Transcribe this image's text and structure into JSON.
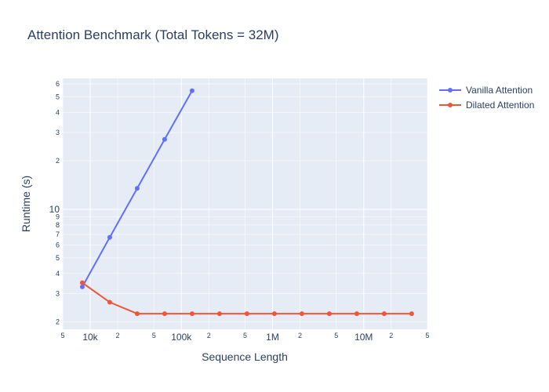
{
  "chart_data": {
    "type": "line",
    "title": "Attention Benchmark (Total Tokens = 32M)",
    "xlabel": "Sequence Length",
    "ylabel": "Runtime (s)",
    "x_scale": "log",
    "y_scale": "log",
    "xlim": [
      5000,
      50000000
    ],
    "ylim": [
      1.8,
      65
    ],
    "x_major_ticks": [
      {
        "value": 10000,
        "label": "10k"
      },
      {
        "value": 100000,
        "label": "100k"
      },
      {
        "value": 1000000,
        "label": "1M"
      },
      {
        "value": 10000000,
        "label": "10M"
      }
    ],
    "x_minor_ticks": [
      {
        "value": 5000,
        "label": "5"
      },
      {
        "value": 20000,
        "label": "2"
      },
      {
        "value": 50000,
        "label": "5"
      },
      {
        "value": 200000,
        "label": "2"
      },
      {
        "value": 500000,
        "label": "5"
      },
      {
        "value": 2000000,
        "label": "2"
      },
      {
        "value": 5000000,
        "label": "5"
      },
      {
        "value": 20000000,
        "label": "2"
      },
      {
        "value": 50000000,
        "label": "5"
      }
    ],
    "y_major_ticks": [
      {
        "value": 10,
        "label": "10"
      }
    ],
    "y_minor_ticks": [
      {
        "value": 2,
        "label": "2"
      },
      {
        "value": 3,
        "label": "3"
      },
      {
        "value": 4,
        "label": "4"
      },
      {
        "value": 5,
        "label": "5"
      },
      {
        "value": 6,
        "label": "6"
      },
      {
        "value": 7,
        "label": "7"
      },
      {
        "value": 8,
        "label": "8"
      },
      {
        "value": 9,
        "label": "9"
      },
      {
        "value": 20,
        "label": "2"
      },
      {
        "value": 30,
        "label": "3"
      },
      {
        "value": 40,
        "label": "4"
      },
      {
        "value": 50,
        "label": "5"
      },
      {
        "value": 60,
        "label": "6"
      }
    ],
    "series": [
      {
        "name": "Vanilla Attention",
        "color": "#636efa",
        "x": [
          8192,
          16384,
          32768,
          65536,
          131072
        ],
        "y": [
          3.3,
          6.7,
          13.5,
          27.2,
          54.5
        ]
      },
      {
        "name": "Dilated Attention",
        "color": "#ef553b",
        "x": [
          8192,
          16384,
          32768,
          65536,
          131072,
          262144,
          524288,
          1048576,
          2097152,
          4194304,
          8388608,
          16777216,
          33554432
        ],
        "y": [
          3.5,
          2.65,
          2.25,
          2.25,
          2.25,
          2.25,
          2.25,
          2.25,
          2.25,
          2.25,
          2.25,
          2.25,
          2.25
        ]
      }
    ],
    "legend_position": "top-right",
    "grid": true
  }
}
